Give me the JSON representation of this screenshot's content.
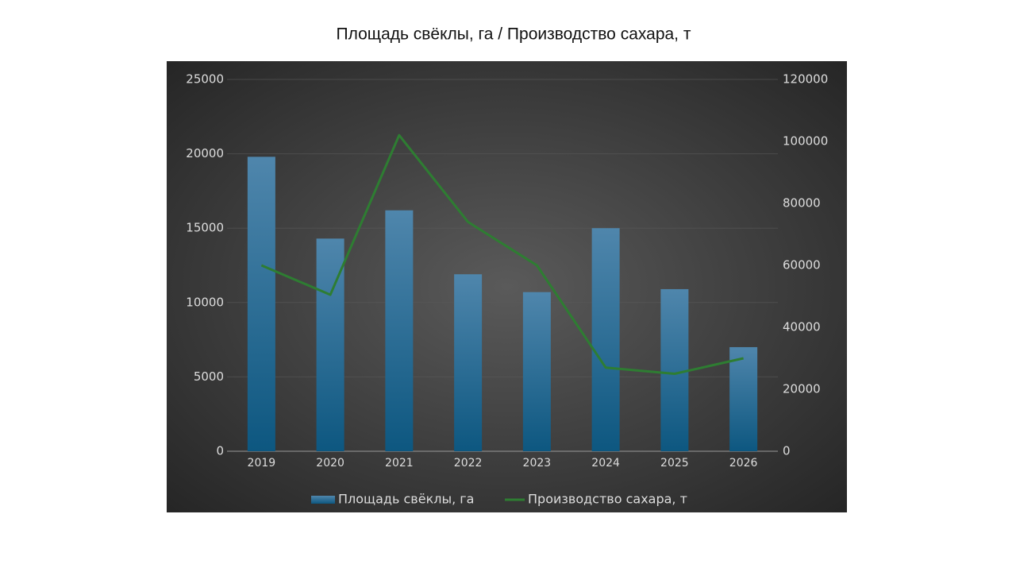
{
  "chart_data": {
    "type": "bar-line",
    "title": "Площадь свёклы, га / Производство сахара, т",
    "categories": [
      "2019",
      "2020",
      "2021",
      "2022",
      "2023",
      "2024",
      "2025",
      "2026"
    ],
    "series": [
      {
        "name": "Площадь свёклы, га",
        "type": "bar",
        "color": "#1f6d99",
        "values": [
          19800,
          14300,
          16200,
          11900,
          10700,
          15000,
          10900,
          7000
        ]
      },
      {
        "name": "Производство сахара, т",
        "type": "line",
        "axis": "y2",
        "color": "#2e7d32",
        "values": [
          60000,
          50500,
          102000,
          74000,
          60000,
          27000,
          25000,
          30000
        ]
      }
    ],
    "ylim": [
      0,
      25000
    ],
    "yticks": [
      0,
      5000,
      10000,
      15000,
      20000,
      25000
    ],
    "y2lim": [
      0,
      120000
    ],
    "y2ticks": [
      0,
      20000,
      40000,
      60000,
      80000,
      100000,
      120000
    ],
    "grid": true,
    "legend": "bottom"
  }
}
